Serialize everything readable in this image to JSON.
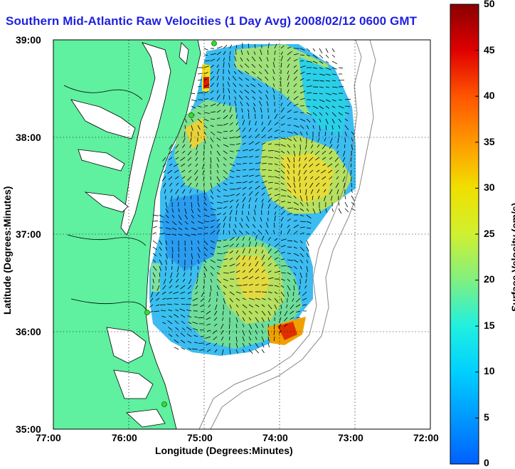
{
  "title": "Southern Mid-Atlantic Raw Velocities (1 Day Avg) 2008/02/12 0600 GMT",
  "xlabel": "Longitude (Degrees:Minutes)",
  "ylabel": "Latitude (Degrees:Minutes)",
  "x_ticks": [
    "77:00",
    "76:00",
    "75:00",
    "74:00",
    "73:00",
    "72:00"
  ],
  "y_ticks": [
    "39:00",
    "38:00",
    "37:00",
    "36:00",
    "35:00"
  ],
  "colorbar": {
    "label": "Surface Velocity (cm/s)",
    "ticks": [
      "0",
      "5",
      "10",
      "15",
      "20",
      "25",
      "30",
      "35",
      "40",
      "45",
      "50"
    ],
    "range": [
      0,
      50
    ]
  },
  "colors": {
    "land": "#5ff0a0",
    "title": "#1f1fe0",
    "arrow": "#000000",
    "station": "#33dd33"
  },
  "map": {
    "lon_range": [
      -77,
      -72
    ],
    "lat_range": [
      35,
      39
    ],
    "grid": true
  }
}
